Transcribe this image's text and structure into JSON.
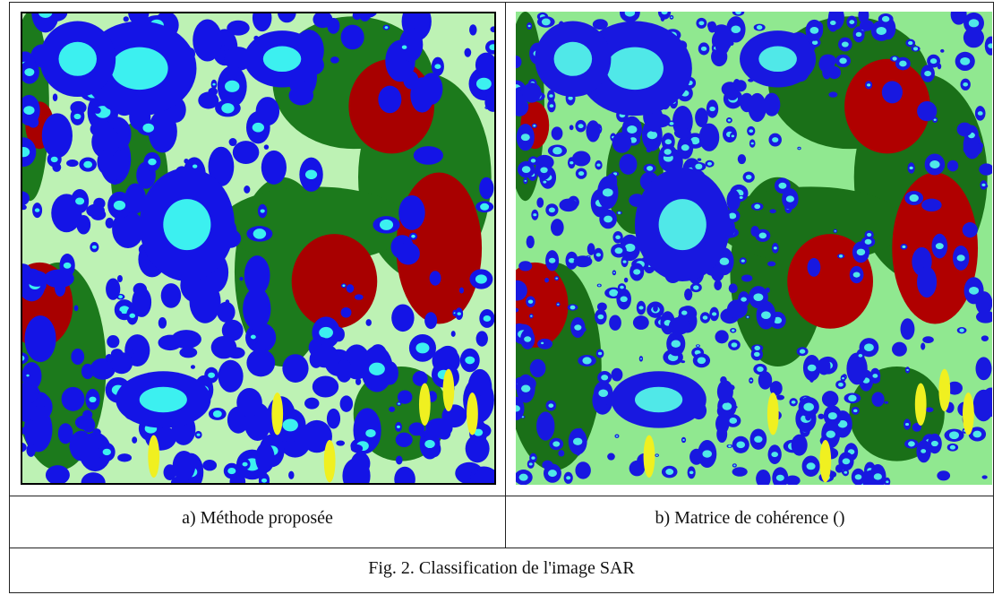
{
  "figure": {
    "panels": [
      {
        "caption": "a) Méthode proposée"
      },
      {
        "caption": "b) Matrice de cohérence ()"
      }
    ],
    "caption": "Fig. 2. Classification de l'image SAR"
  }
}
